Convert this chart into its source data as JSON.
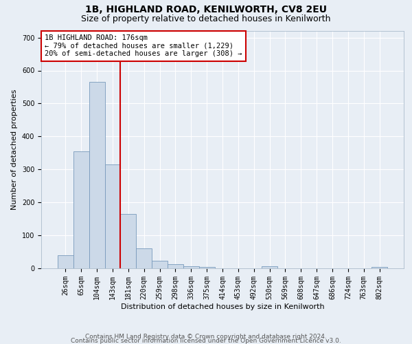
{
  "title": "1B, HIGHLAND ROAD, KENILWORTH, CV8 2EU",
  "subtitle": "Size of property relative to detached houses in Kenilworth",
  "xlabel": "Distribution of detached houses by size in Kenilworth",
  "ylabel": "Number of detached properties",
  "footer_line1": "Contains HM Land Registry data © Crown copyright and database right 2024.",
  "footer_line2": "Contains public sector information licensed under the Open Government Licence v3.0.",
  "bin_labels": [
    "26sqm",
    "65sqm",
    "104sqm",
    "143sqm",
    "181sqm",
    "220sqm",
    "259sqm",
    "298sqm",
    "336sqm",
    "375sqm",
    "414sqm",
    "453sqm",
    "492sqm",
    "530sqm",
    "569sqm",
    "608sqm",
    "647sqm",
    "686sqm",
    "724sqm",
    "763sqm",
    "802sqm"
  ],
  "bar_values": [
    40,
    355,
    565,
    315,
    165,
    60,
    22,
    12,
    7,
    5,
    0,
    0,
    0,
    7,
    0,
    0,
    0,
    0,
    0,
    0,
    5
  ],
  "bar_color": "#ccd9e8",
  "bar_edge_color": "#7799bb",
  "vline_color": "#cc0000",
  "annotation_text": "1B HIGHLAND ROAD: 176sqm\n← 79% of detached houses are smaller (1,229)\n20% of semi-detached houses are larger (308) →",
  "annotation_box_color": "#ffffff",
  "annotation_box_edge_color": "#cc0000",
  "ylim": [
    0,
    720
  ],
  "yticks": [
    0,
    100,
    200,
    300,
    400,
    500,
    600,
    700
  ],
  "background_color": "#e8eef5",
  "plot_background_color": "#e8eef5",
  "grid_color": "#ffffff",
  "title_fontsize": 10,
  "subtitle_fontsize": 9,
  "axis_label_fontsize": 8,
  "tick_fontsize": 7,
  "footer_fontsize": 6.5,
  "ylabel_fontsize": 8
}
